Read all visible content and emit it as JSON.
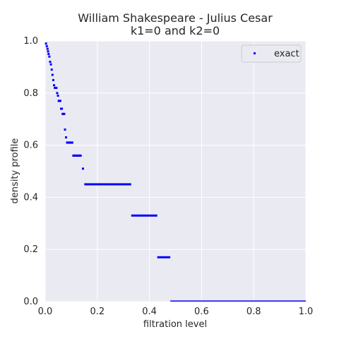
{
  "chart_data": {
    "type": "scatter",
    "title": "William Shakespeare - Julius Cesar",
    "subtitle": "k1=0 and k2=0",
    "xlabel": "filtration level",
    "ylabel": "density profile",
    "xlim": [
      0,
      1
    ],
    "ylim": [
      0,
      1
    ],
    "xticks": [
      "0.0",
      "0.2",
      "0.4",
      "0.6",
      "0.8",
      "1.0"
    ],
    "yticks": [
      "0.0",
      "0.2",
      "0.4",
      "0.6",
      "0.8",
      "1.0"
    ],
    "grid": true,
    "legend": {
      "placement": "top-right",
      "entries": [
        "exact"
      ]
    },
    "series": [
      {
        "name": "exact",
        "color": "#0000ff",
        "points": [
          [
            0.003,
            0.99
          ],
          [
            0.006,
            0.98
          ],
          [
            0.009,
            0.97
          ],
          [
            0.011,
            0.96
          ],
          [
            0.013,
            0.95
          ],
          [
            0.016,
            0.94
          ],
          [
            0.019,
            0.92
          ],
          [
            0.022,
            0.91
          ],
          [
            0.025,
            0.89
          ],
          [
            0.028,
            0.87
          ],
          [
            0.031,
            0.85
          ],
          [
            0.034,
            0.83
          ],
          [
            0.037,
            0.82
          ],
          [
            0.04,
            0.82
          ],
          [
            0.043,
            0.82
          ],
          [
            0.046,
            0.8
          ],
          [
            0.049,
            0.79
          ],
          [
            0.052,
            0.77
          ],
          [
            0.055,
            0.77
          ],
          [
            0.058,
            0.77
          ],
          [
            0.061,
            0.74
          ],
          [
            0.064,
            0.74
          ],
          [
            0.067,
            0.72
          ],
          [
            0.07,
            0.72
          ],
          [
            0.073,
            0.72
          ],
          [
            0.076,
            0.66
          ],
          [
            0.08,
            0.63
          ],
          [
            0.084,
            0.61
          ],
          [
            0.088,
            0.61
          ],
          [
            0.092,
            0.61
          ],
          [
            0.096,
            0.61
          ],
          [
            0.1,
            0.61
          ],
          [
            0.104,
            0.61
          ],
          [
            0.108,
            0.56
          ],
          [
            0.112,
            0.56
          ],
          [
            0.116,
            0.56
          ],
          [
            0.12,
            0.56
          ],
          [
            0.124,
            0.56
          ],
          [
            0.128,
            0.56
          ],
          [
            0.132,
            0.56
          ],
          [
            0.136,
            0.56
          ],
          [
            0.145,
            0.51
          ]
        ],
        "segments": [
          {
            "x": [
              0.15,
              0.33
            ],
            "y": 0.45
          },
          {
            "x": [
              0.33,
              0.43
            ],
            "y": 0.33
          },
          {
            "x": [
              0.43,
              0.48
            ],
            "y": 0.17
          },
          {
            "x": [
              0.48,
              1.0
            ],
            "y": 0.0
          }
        ]
      }
    ]
  }
}
